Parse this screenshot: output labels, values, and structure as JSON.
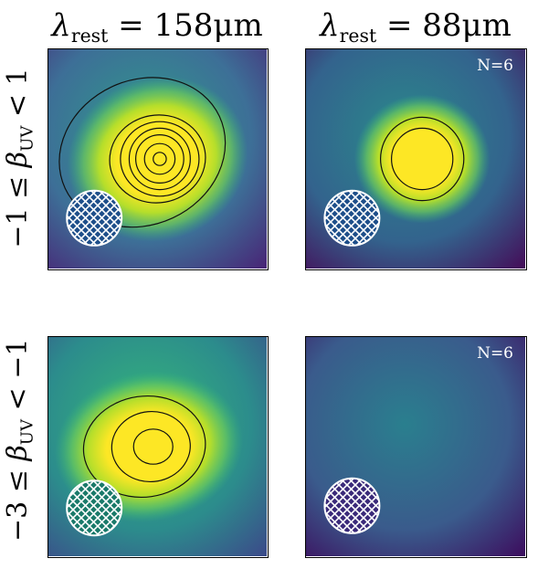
{
  "figure": {
    "columns": [
      {
        "symbol": "λ",
        "subscript": "rest",
        "relation": "=",
        "value": "158μm"
      },
      {
        "symbol": "λ",
        "subscript": "rest",
        "relation": "=",
        "value": "88μm"
      }
    ],
    "rows": [
      {
        "lower": "−1",
        "rel1": "≤",
        "symbol": "β",
        "subscript": "UV",
        "rel2": "<",
        "upper": "1"
      },
      {
        "lower": "−3",
        "rel1": "≤",
        "symbol": "β",
        "subscript": "UV",
        "rel2": "<",
        "upper": "−1"
      }
    ]
  },
  "chart_data": [
    {
      "type": "heatmap",
      "row": "−1 ≤ βUV < 1",
      "column": "λrest = 158μm",
      "badge": "",
      "colormap": "viridis",
      "background_level": 0.45,
      "source": {
        "x": 0.5,
        "y": 0.5,
        "peak": 1.0,
        "extended": true
      },
      "contour_levels": 7,
      "beam_hatch_color": "#1e4f8a"
    },
    {
      "type": "heatmap",
      "row": "−1 ≤ βUV < 1",
      "column": "λrest = 88μm",
      "badge": "N=6",
      "colormap": "viridis",
      "background_level": 0.35,
      "source": {
        "x": 0.53,
        "y": 0.5,
        "peak": 1.0,
        "extended": false
      },
      "contour_levels": 2,
      "beam_hatch_color": "#1e4f8a"
    },
    {
      "type": "heatmap",
      "row": "−3 ≤ βUV < −1",
      "column": "λrest = 158μm",
      "badge": "",
      "colormap": "viridis",
      "background_level": 0.45,
      "source": {
        "x": 0.48,
        "y": 0.5,
        "peak": 1.0,
        "extended": true
      },
      "contour_levels": 3,
      "beam_hatch_color": "#1a7a6a"
    },
    {
      "type": "heatmap",
      "row": "−3 ≤ βUV < −1",
      "column": "λrest = 88μm",
      "badge": "N=6",
      "colormap": "viridis",
      "background_level": 0.4,
      "source": null,
      "contour_levels": 0,
      "beam_hatch_color": "#3b2a7a"
    }
  ]
}
